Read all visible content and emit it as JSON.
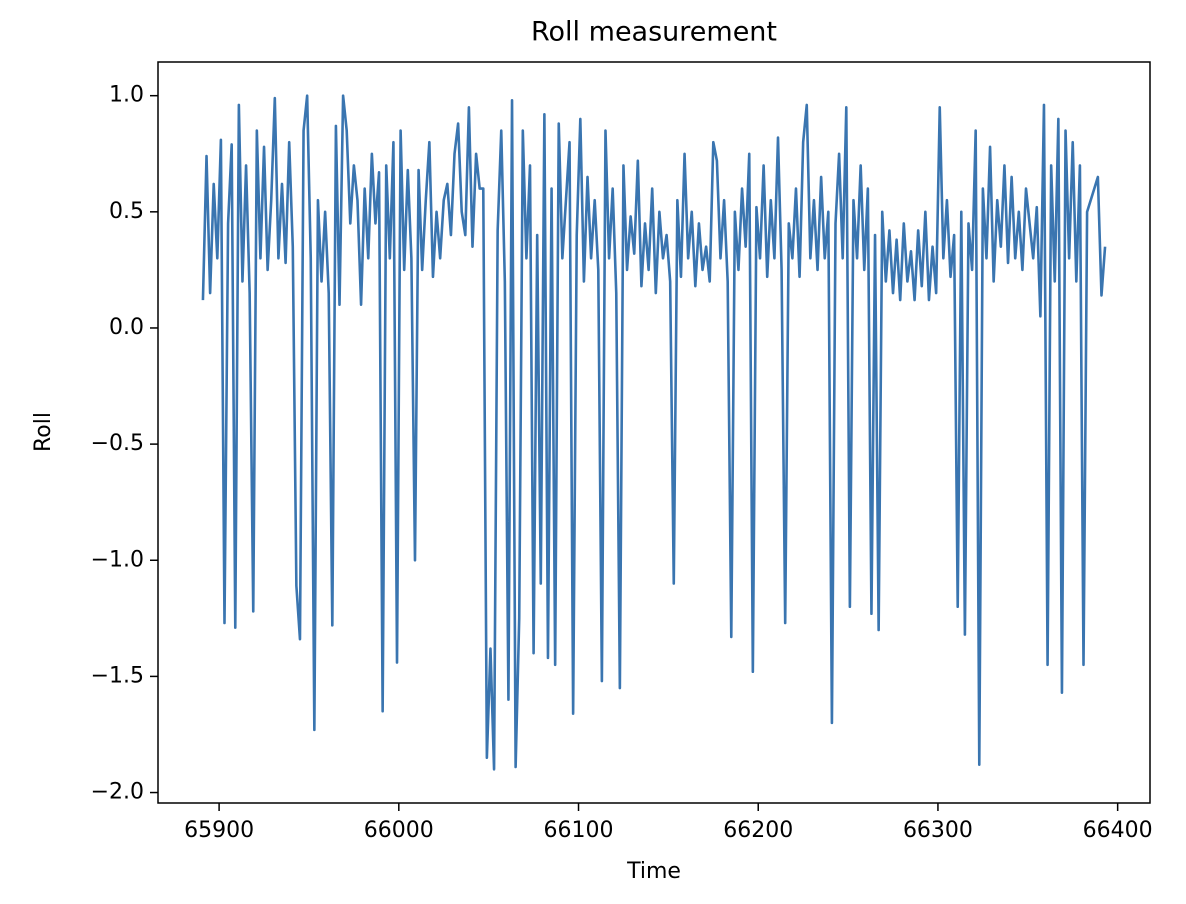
{
  "chart_data": {
    "type": "line",
    "title": "Roll measurement",
    "x_label": "Time",
    "y_label": "Roll",
    "xlim": [
      65866,
      66418
    ],
    "ylim": [
      -2.045,
      1.145
    ],
    "xticks": [
      65900,
      66000,
      66100,
      66200,
      66300,
      66400
    ],
    "yticks": [
      {
        "value": -2.0,
        "label": "−2.0"
      },
      {
        "value": -1.5,
        "label": "−1.5"
      },
      {
        "value": -1.0,
        "label": "−1.0"
      },
      {
        "value": -0.5,
        "label": "−0.5"
      },
      {
        "value": 0.0,
        "label": "0.0"
      },
      {
        "value": 0.5,
        "label": "0.5"
      },
      {
        "value": 1.0,
        "label": "1.0"
      }
    ],
    "grid": false,
    "x": [
      65891,
      65893,
      65895,
      65897,
      65899,
      65901,
      65903,
      65905,
      65907,
      65909,
      65911,
      65913,
      65915,
      65917,
      65919,
      65921,
      65923,
      65925,
      65927,
      65929,
      65931,
      65933,
      65935,
      65937,
      65939,
      65941,
      65943,
      65945,
      65947,
      65949,
      65951,
      65953,
      65955,
      65957,
      65959,
      65961,
      65963,
      65965,
      65967,
      65969,
      65971,
      65973,
      65975,
      65977,
      65979,
      65981,
      65983,
      65985,
      65987,
      65989,
      65991,
      65993,
      65995,
      65997,
      65999,
      66001,
      66003,
      66005,
      66007,
      66009,
      66011,
      66013,
      66015,
      66017,
      66019,
      66021,
      66023,
      66025,
      66027,
      66029,
      66031,
      66033,
      66035,
      66037,
      66039,
      66041,
      66043,
      66045,
      66047,
      66049,
      66051,
      66053,
      66055,
      66057,
      66059,
      66061,
      66063,
      66065,
      66067,
      66069,
      66071,
      66073,
      66075,
      66077,
      66079,
      66081,
      66083,
      66085,
      66087,
      66089,
      66091,
      66093,
      66095,
      66097,
      66099,
      66101,
      66103,
      66105,
      66107,
      66109,
      66111,
      66113,
      66115,
      66117,
      66119,
      66121,
      66123,
      66125,
      66127,
      66129,
      66131,
      66133,
      66135,
      66137,
      66139,
      66141,
      66143,
      66145,
      66147,
      66149,
      66151,
      66153,
      66155,
      66157,
      66159,
      66161,
      66163,
      66165,
      66167,
      66169,
      66171,
      66173,
      66175,
      66177,
      66179,
      66181,
      66183,
      66185,
      66187,
      66189,
      66191,
      66193,
      66195,
      66197,
      66199,
      66201,
      66203,
      66205,
      66207,
      66209,
      66211,
      66213,
      66215,
      66217,
      66219,
      66221,
      66223,
      66225,
      66227,
      66229,
      66231,
      66233,
      66235,
      66237,
      66239,
      66241,
      66243,
      66245,
      66247,
      66249,
      66251,
      66253,
      66255,
      66257,
      66259,
      66261,
      66263,
      66265,
      66267,
      66269,
      66271,
      66273,
      66275,
      66277,
      66279,
      66281,
      66283,
      66285,
      66287,
      66289,
      66291,
      66293,
      66295,
      66297,
      66299,
      66301,
      66303,
      66305,
      66307,
      66309,
      66311,
      66313,
      66315,
      66317,
      66319,
      66321,
      66323,
      66325,
      66327,
      66329,
      66331,
      66333,
      66335,
      66337,
      66339,
      66341,
      66343,
      66345,
      66347,
      66349,
      66351,
      66353,
      66355,
      66357,
      66359,
      66361,
      66363,
      66365,
      66367,
      66369,
      66371,
      66373,
      66375,
      66377,
      66379,
      66381,
      66383,
      66385,
      66387,
      66389,
      66391,
      66393
    ],
    "series": [
      {
        "name": "Roll",
        "color": "#3a75b0",
        "values": [
          0.12,
          0.74,
          0.15,
          0.62,
          0.3,
          0.81,
          -1.27,
          0.45,
          0.79,
          -1.29,
          0.96,
          0.2,
          0.7,
          0.15,
          -1.22,
          0.85,
          0.3,
          0.78,
          0.25,
          0.55,
          0.99,
          0.3,
          0.62,
          0.28,
          0.8,
          0.35,
          -1.11,
          -1.34,
          0.85,
          1.0,
          0.3,
          -1.73,
          0.55,
          0.2,
          0.5,
          0.15,
          -1.28,
          0.87,
          0.1,
          1.0,
          0.85,
          0.45,
          0.7,
          0.55,
          0.1,
          0.6,
          0.3,
          0.75,
          0.45,
          0.67,
          -1.65,
          0.7,
          0.3,
          0.8,
          -1.44,
          0.85,
          0.25,
          0.68,
          0.3,
          -1.0,
          0.68,
          0.25,
          0.55,
          0.8,
          0.22,
          0.5,
          0.3,
          0.55,
          0.62,
          0.4,
          0.75,
          0.88,
          0.5,
          0.4,
          0.95,
          0.35,
          0.75,
          0.6,
          0.6,
          -1.85,
          -1.38,
          -1.9,
          0.42,
          0.85,
          0.2,
          -1.6,
          0.98,
          -1.89,
          -1.25,
          0.85,
          0.3,
          0.7,
          -1.4,
          0.4,
          -1.1,
          0.92,
          -1.42,
          0.6,
          -1.45,
          0.88,
          0.3,
          0.55,
          0.8,
          -1.66,
          0.4,
          0.9,
          0.2,
          0.65,
          0.3,
          0.55,
          0.25,
          -1.52,
          0.85,
          0.3,
          0.6,
          0.15,
          -1.55,
          0.7,
          0.25,
          0.48,
          0.32,
          0.72,
          0.18,
          0.45,
          0.25,
          0.6,
          0.15,
          0.5,
          0.3,
          0.4,
          0.2,
          -1.1,
          0.55,
          0.22,
          0.75,
          0.3,
          0.5,
          0.18,
          0.45,
          0.25,
          0.35,
          0.2,
          0.8,
          0.72,
          0.3,
          0.55,
          0.2,
          -1.33,
          0.5,
          0.25,
          0.6,
          0.35,
          0.75,
          -1.48,
          0.52,
          0.3,
          0.7,
          0.22,
          0.55,
          0.3,
          0.82,
          0.25,
          -1.27,
          0.45,
          0.3,
          0.6,
          0.22,
          0.8,
          0.96,
          0.3,
          0.55,
          0.25,
          0.65,
          0.3,
          0.5,
          -1.7,
          0.45,
          0.75,
          0.3,
          0.95,
          -1.2,
          0.55,
          0.3,
          0.7,
          0.25,
          0.6,
          -1.23,
          0.4,
          -1.3,
          0.5,
          0.2,
          0.42,
          0.15,
          0.38,
          0.12,
          0.45,
          0.2,
          0.33,
          0.12,
          0.42,
          0.18,
          0.5,
          0.12,
          0.35,
          0.15,
          0.95,
          0.3,
          0.55,
          0.22,
          0.4,
          -1.2,
          0.5,
          -1.32,
          0.45,
          0.25,
          0.85,
          -1.88,
          0.6,
          0.3,
          0.78,
          0.2,
          0.55,
          0.35,
          0.7,
          0.28,
          0.65,
          0.3,
          0.5,
          0.25,
          0.6,
          0.45,
          0.3,
          0.52,
          0.05,
          0.96,
          -1.45,
          0.7,
          0.2,
          0.9,
          -1.57,
          0.85,
          0.3,
          0.8,
          0.2,
          0.7,
          -1.45,
          0.5,
          0.55,
          0.6,
          0.65,
          0.14,
          0.35
        ]
      }
    ]
  }
}
